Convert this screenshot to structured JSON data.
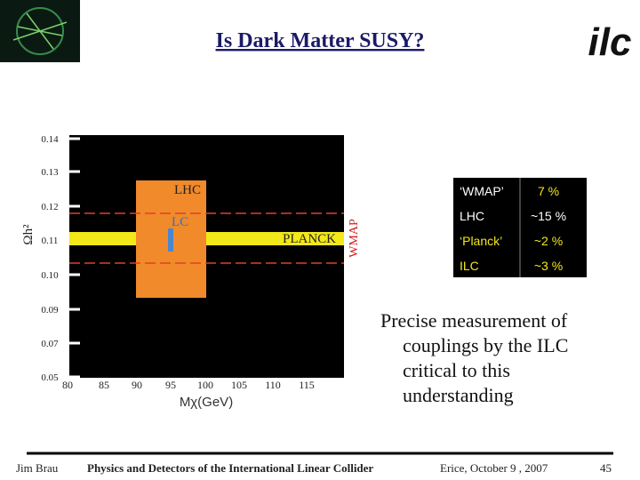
{
  "header": {
    "title": "Is Dark Matter SUSY?",
    "logo": "ilc"
  },
  "figure": {
    "y_axis_label": "Ωh²",
    "x_axis_label": "Mχ(GeV)",
    "yticks": [
      "0.14",
      "0.13",
      "0.12",
      "0.11",
      "0.10",
      "0.09",
      "0.07",
      "0.05"
    ],
    "xticks": [
      "80",
      "85",
      "90",
      "95",
      "100",
      "105",
      "110",
      "115"
    ],
    "regions": {
      "lhc": "LHC",
      "lc": "LC",
      "planck": "PLANCK",
      "wmap": "WMAP"
    }
  },
  "table": {
    "rows": [
      [
        "‘WMAP’",
        "7 %"
      ],
      [
        "LHC",
        "~15 %"
      ],
      [
        "‘Planck’",
        "~2 %"
      ],
      [
        "ILC",
        "~3 %"
      ]
    ]
  },
  "text": {
    "lines": [
      "Precise measurement of",
      "couplings by the ILC",
      "critical to this",
      "understanding"
    ]
  },
  "footer": {
    "author": "Jim Brau",
    "course": "Physics and Detectors of the International Linear Collider",
    "event": "Erice, October 9 , 2007",
    "page": "45"
  }
}
